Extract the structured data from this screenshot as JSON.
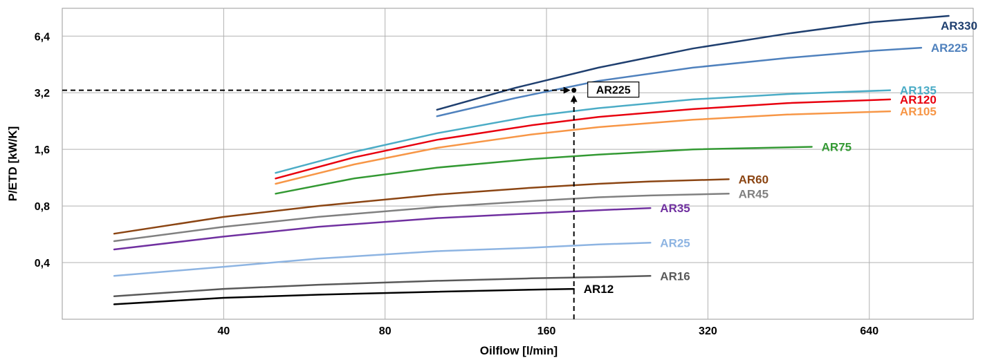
{
  "chart_data": {
    "type": "line",
    "title": "",
    "xlabel": "Oilflow [l/min]",
    "ylabel": "P/ETD [kW/K]",
    "x_scale": "log",
    "y_scale": "log",
    "xlim": [
      20,
      1000
    ],
    "ylim": [
      0.2,
      9
    ],
    "x_ticks": [
      40,
      80,
      160,
      320,
      640
    ],
    "x_tick_labels": [
      "40",
      "80",
      "160",
      "320",
      "640"
    ],
    "y_ticks": [
      0.4,
      0.8,
      1.6,
      3.2,
      6.4
    ],
    "y_tick_labels": [
      "0,4",
      "0,8",
      "1,6",
      "3,2",
      "6,4"
    ],
    "grid": true,
    "legend": "inline labels at line ends",
    "series": [
      {
        "name": "AR330",
        "color": "#1f3f6f",
        "x": [
          100,
          140,
          200,
          300,
          450,
          650,
          900
        ],
        "y": [
          2.6,
          3.4,
          4.35,
          5.5,
          6.6,
          7.6,
          8.2
        ]
      },
      {
        "name": "AR225",
        "color": "#4f81bd",
        "x": [
          100,
          140,
          200,
          300,
          450,
          650,
          800
        ],
        "y": [
          2.4,
          3.0,
          3.7,
          4.35,
          4.9,
          5.35,
          5.55
        ]
      },
      {
        "name": "AR135",
        "color": "#4bacc6",
        "x": [
          50,
          70,
          100,
          150,
          200,
          300,
          450,
          700
        ],
        "y": [
          1.2,
          1.55,
          1.95,
          2.4,
          2.65,
          2.95,
          3.15,
          3.3
        ]
      },
      {
        "name": "AR120",
        "color": "#e8000e",
        "x": [
          50,
          70,
          100,
          150,
          200,
          300,
          450,
          700
        ],
        "y": [
          1.12,
          1.45,
          1.8,
          2.15,
          2.38,
          2.62,
          2.82,
          2.95
        ]
      },
      {
        "name": "AR105",
        "color": "#f79646",
        "x": [
          50,
          70,
          100,
          150,
          200,
          300,
          450,
          700
        ],
        "y": [
          1.05,
          1.33,
          1.63,
          1.92,
          2.1,
          2.3,
          2.45,
          2.55
        ]
      },
      {
        "name": "AR75",
        "color": "#339933",
        "x": [
          50,
          70,
          100,
          150,
          200,
          300,
          500
        ],
        "y": [
          0.93,
          1.12,
          1.28,
          1.42,
          1.5,
          1.6,
          1.65
        ]
      },
      {
        "name": "AR60",
        "color": "#8b4513",
        "x": [
          25,
          40,
          60,
          100,
          150,
          200,
          250,
          350
        ],
        "y": [
          0.57,
          0.7,
          0.8,
          0.92,
          1.0,
          1.05,
          1.08,
          1.11
        ]
      },
      {
        "name": "AR45",
        "color": "#808080",
        "x": [
          25,
          40,
          60,
          100,
          150,
          200,
          250,
          350
        ],
        "y": [
          0.52,
          0.62,
          0.7,
          0.79,
          0.85,
          0.89,
          0.91,
          0.93
        ]
      },
      {
        "name": "AR35",
        "color": "#7030a0",
        "x": [
          25,
          40,
          60,
          100,
          150,
          200,
          250
        ],
        "y": [
          0.47,
          0.55,
          0.62,
          0.69,
          0.73,
          0.76,
          0.78
        ]
      },
      {
        "name": "AR25",
        "color": "#8db4e2",
        "x": [
          25,
          40,
          60,
          100,
          150,
          200,
          250
        ],
        "y": [
          0.34,
          0.38,
          0.42,
          0.46,
          0.48,
          0.5,
          0.51
        ]
      },
      {
        "name": "AR16",
        "color": "#595959",
        "x": [
          25,
          40,
          60,
          100,
          150,
          200,
          250
        ],
        "y": [
          0.265,
          0.29,
          0.305,
          0.32,
          0.33,
          0.335,
          0.34
        ]
      },
      {
        "name": "AR12",
        "color": "#000000",
        "x": [
          25,
          40,
          60,
          100,
          150,
          180
        ],
        "y": [
          0.24,
          0.26,
          0.27,
          0.28,
          0.287,
          0.29
        ]
      }
    ],
    "annotations": {
      "operating_point": {
        "x": 180,
        "y": 3.3
      },
      "box_label": "AR225",
      "horizontal_guide_y": 3.3,
      "vertical_guide_x": 180
    }
  }
}
